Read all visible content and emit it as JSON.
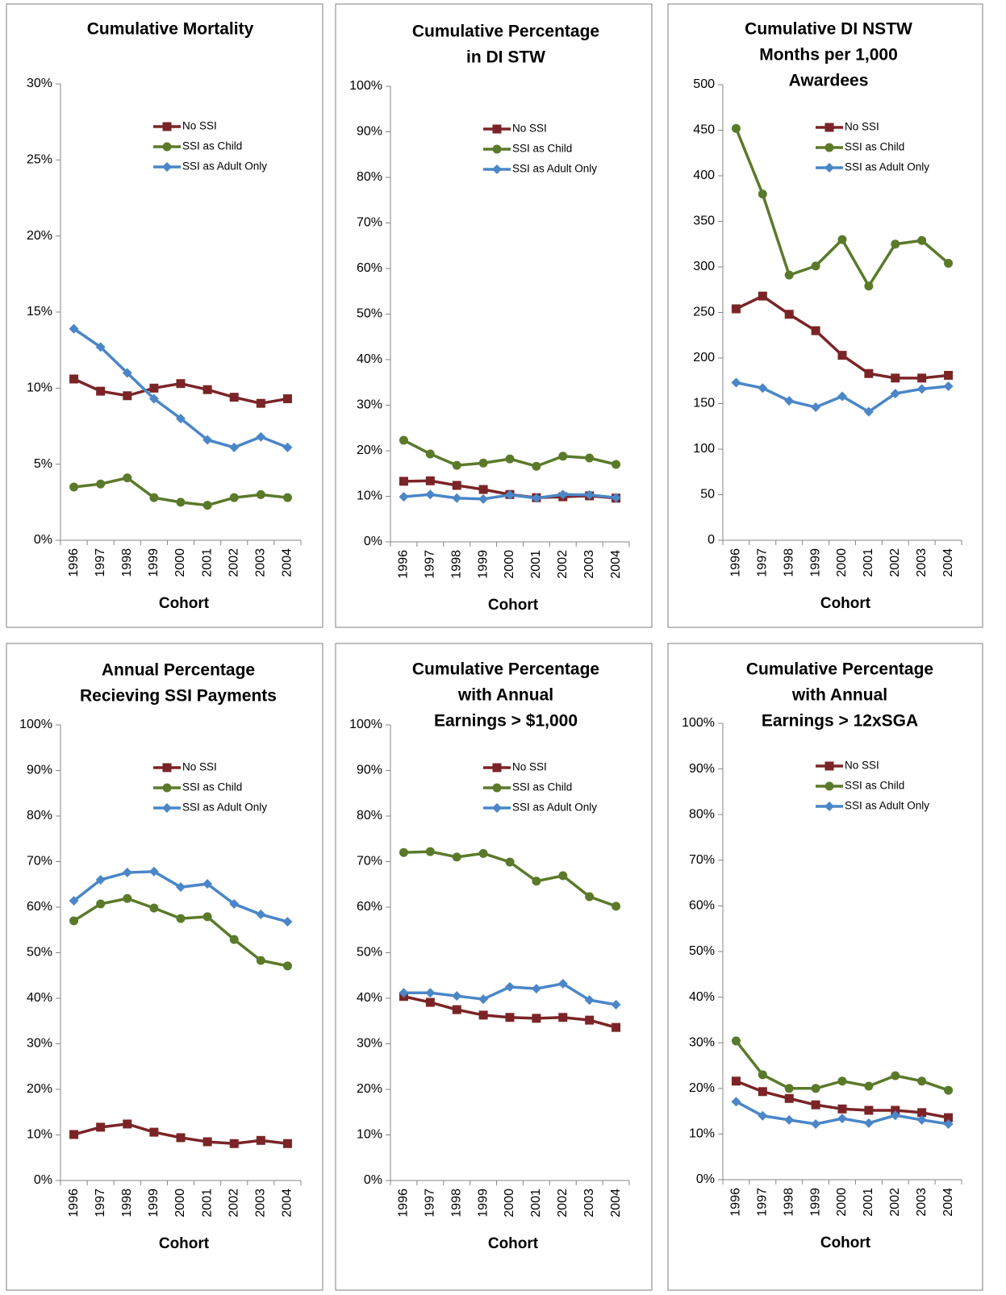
{
  "chart_data": [
    {
      "type": "line",
      "title": [
        "Cumulative Mortality"
      ],
      "x_label": "Cohort",
      "categories": [
        "1996",
        "1997",
        "1998",
        "1999",
        "2000",
        "2001",
        "2002",
        "2003",
        "2004"
      ],
      "series": [
        {
          "name": "No SSI",
          "color": "#7b2427",
          "marker": "square",
          "values": [
            10.6,
            9.8,
            9.5,
            10.0,
            10.3,
            9.9,
            9.4,
            9.0,
            9.3
          ]
        },
        {
          "name": "SSI as Child",
          "color": "#5a7a2a",
          "marker": "circle",
          "values": [
            3.5,
            3.7,
            4.1,
            2.8,
            2.5,
            2.3,
            2.8,
            3.0,
            2.8
          ]
        },
        {
          "name": "SSI as Adult Only",
          "color": "#4a86c8",
          "marker": "diamond",
          "values": [
            13.9,
            12.7,
            11.0,
            9.3,
            8.0,
            6.6,
            6.1,
            6.8,
            6.1
          ]
        }
      ],
      "ylim": [
        0,
        30
      ],
      "yticks": [
        {
          "value": 0,
          "label": "0%"
        },
        {
          "value": 5,
          "label": "5%"
        },
        {
          "value": 10,
          "label": "10%"
        },
        {
          "value": 15,
          "label": "15%"
        },
        {
          "value": 20,
          "label": "20%"
        },
        {
          "value": 25,
          "label": "25%"
        },
        {
          "value": 30,
          "label": "30%"
        }
      ],
      "legend": "top"
    },
    {
      "type": "line",
      "title": [
        "Cumulative Percentage",
        "in DI STW"
      ],
      "x_label": "Cohort",
      "categories": [
        "1996",
        "1997",
        "1998",
        "1999",
        "2000",
        "2001",
        "2002",
        "2003",
        "2004"
      ],
      "series": [
        {
          "name": "No SSI",
          "color": "#7b2427",
          "marker": "square",
          "values": [
            13.3,
            13.4,
            12.4,
            11.5,
            10.4,
            9.7,
            9.9,
            10.1,
            9.6
          ]
        },
        {
          "name": "SSI as Child",
          "color": "#5a7a2a",
          "marker": "circle",
          "values": [
            22.3,
            19.3,
            16.8,
            17.3,
            18.2,
            16.6,
            18.8,
            18.4,
            17.0
          ]
        },
        {
          "name": "SSI as Adult Only",
          "color": "#4a86c8",
          "marker": "diamond",
          "values": [
            9.9,
            10.4,
            9.6,
            9.4,
            10.3,
            9.6,
            10.4,
            10.3,
            9.7
          ]
        }
      ],
      "ylim": [
        0,
        100
      ],
      "yticks": [
        {
          "value": 0,
          "label": "0%"
        },
        {
          "value": 10,
          "label": "10%"
        },
        {
          "value": 20,
          "label": "20%"
        },
        {
          "value": 30,
          "label": "30%"
        },
        {
          "value": 40,
          "label": "40%"
        },
        {
          "value": 50,
          "label": "50%"
        },
        {
          "value": 60,
          "label": "60%"
        },
        {
          "value": 70,
          "label": "70%"
        },
        {
          "value": 80,
          "label": "80%"
        },
        {
          "value": 90,
          "label": "90%"
        },
        {
          "value": 100,
          "label": "100%"
        }
      ],
      "legend": "top"
    },
    {
      "type": "line",
      "title": [
        "Cumulative DI NSTW",
        "Months per 1,000",
        "Awardees"
      ],
      "x_label": "Cohort",
      "categories": [
        "1996",
        "1997",
        "1998",
        "1999",
        "2000",
        "2001",
        "2002",
        "2003",
        "2004"
      ],
      "series": [
        {
          "name": "No SSI",
          "color": "#7b2427",
          "marker": "square",
          "values": [
            254,
            268,
            248,
            230,
            203,
            183,
            178,
            178,
            181
          ]
        },
        {
          "name": "SSI as Child",
          "color": "#5a7a2a",
          "marker": "circle",
          "values": [
            452,
            380,
            291,
            301,
            330,
            279,
            325,
            329,
            304
          ]
        },
        {
          "name": "SSI as Adult Only",
          "color": "#4a86c8",
          "marker": "diamond",
          "values": [
            173,
            167,
            153,
            146,
            158,
            141,
            161,
            166,
            169
          ]
        }
      ],
      "ylim": [
        0,
        500
      ],
      "yticks": [
        0,
        50,
        100,
        150,
        200,
        250,
        300,
        350,
        400,
        450,
        500
      ],
      "legend": "top"
    },
    {
      "type": "line",
      "title": [
        "Annual Percentage",
        "Recieving SSI Payments"
      ],
      "x_label": "Cohort",
      "categories": [
        "1996",
        "1997",
        "1998",
        "1999",
        "2000",
        "2001",
        "2002",
        "2003",
        "2004"
      ],
      "series": [
        {
          "name": "No SSI",
          "color": "#7b2427",
          "marker": "square",
          "values": [
            10.1,
            11.7,
            12.4,
            10.6,
            9.4,
            8.5,
            8.1,
            8.8,
            8.1
          ]
        },
        {
          "name": "SSI as Child",
          "color": "#5a7a2a",
          "marker": "circle",
          "values": [
            57.0,
            60.7,
            61.9,
            59.8,
            57.5,
            57.9,
            52.9,
            48.3,
            47.1
          ]
        },
        {
          "name": "SSI as Adult Only",
          "color": "#4a86c8",
          "marker": "diamond",
          "values": [
            61.4,
            66.0,
            67.6,
            67.8,
            64.4,
            65.1,
            60.7,
            58.4,
            56.8
          ]
        }
      ],
      "ylim": [
        0,
        100
      ],
      "yticks": [
        {
          "value": 0,
          "label": "0%"
        },
        {
          "value": 10,
          "label": "10%"
        },
        {
          "value": 20,
          "label": "20%"
        },
        {
          "value": 30,
          "label": "30%"
        },
        {
          "value": 40,
          "label": "40%"
        },
        {
          "value": 50,
          "label": "50%"
        },
        {
          "value": 60,
          "label": "60%"
        },
        {
          "value": 70,
          "label": "70%"
        },
        {
          "value": 80,
          "label": "80%"
        },
        {
          "value": 90,
          "label": "90%"
        },
        {
          "value": 100,
          "label": "100%"
        }
      ],
      "legend": "top"
    },
    {
      "type": "line",
      "title": [
        "Cumulative Percentage",
        "with Annual",
        "Earnings > $1,000"
      ],
      "x_label": "Cohort",
      "categories": [
        "1996",
        "1997",
        "1998",
        "1999",
        "2000",
        "2001",
        "2002",
        "2003",
        "2004"
      ],
      "series": [
        {
          "name": "No SSI",
          "color": "#7b2427",
          "marker": "square",
          "values": [
            40.4,
            39.1,
            37.5,
            36.3,
            35.8,
            35.6,
            35.8,
            35.2,
            33.6
          ]
        },
        {
          "name": "SSI as Child",
          "color": "#5a7a2a",
          "marker": "circle",
          "values": [
            72.0,
            72.2,
            71.0,
            71.8,
            69.9,
            65.7,
            66.9,
            62.3,
            60.2
          ]
        },
        {
          "name": "SSI as Adult Only",
          "color": "#4a86c8",
          "marker": "diamond",
          "values": [
            41.2,
            41.2,
            40.5,
            39.8,
            42.5,
            42.1,
            43.2,
            39.6,
            38.6
          ]
        }
      ],
      "ylim": [
        0,
        100
      ],
      "yticks": [
        {
          "value": 0,
          "label": "0%"
        },
        {
          "value": 10,
          "label": "10%"
        },
        {
          "value": 20,
          "label": "20%"
        },
        {
          "value": 30,
          "label": "30%"
        },
        {
          "value": 40,
          "label": "40%"
        },
        {
          "value": 50,
          "label": "50%"
        },
        {
          "value": 60,
          "label": "60%"
        },
        {
          "value": 70,
          "label": "70%"
        },
        {
          "value": 80,
          "label": "80%"
        },
        {
          "value": 90,
          "label": "90%"
        },
        {
          "value": 100,
          "label": "100%"
        }
      ],
      "legend": "top"
    },
    {
      "type": "line",
      "title": [
        "Cumulative Percentage",
        "with Annual",
        "Earnings > 12xSGA"
      ],
      "x_label": "Cohort",
      "categories": [
        "1996",
        "1997",
        "1998",
        "1999",
        "2000",
        "2001",
        "2002",
        "2003",
        "2004"
      ],
      "series": [
        {
          "name": "No SSI",
          "color": "#7b2427",
          "marker": "square",
          "values": [
            21.6,
            19.3,
            17.8,
            16.4,
            15.5,
            15.2,
            15.2,
            14.7,
            13.6
          ]
        },
        {
          "name": "SSI as Child",
          "color": "#5a7a2a",
          "marker": "circle",
          "values": [
            30.4,
            23.0,
            20.0,
            20.0,
            21.6,
            20.5,
            22.8,
            21.6,
            19.6
          ]
        },
        {
          "name": "SSI as Adult Only",
          "color": "#4a86c8",
          "marker": "diamond",
          "values": [
            17.1,
            14.0,
            13.1,
            12.2,
            13.4,
            12.4,
            14.1,
            13.1,
            12.2
          ]
        }
      ],
      "ylim": [
        0,
        100
      ],
      "yticks": [
        {
          "value": 0,
          "label": "0%"
        },
        {
          "value": 10,
          "label": "10%"
        },
        {
          "value": 20,
          "label": "20%"
        },
        {
          "value": 30,
          "label": "30%"
        },
        {
          "value": 40,
          "label": "40%"
        },
        {
          "value": 50,
          "label": "50%"
        },
        {
          "value": 60,
          "label": "60%"
        },
        {
          "value": 70,
          "label": "70%"
        },
        {
          "value": 80,
          "label": "80%"
        },
        {
          "value": 90,
          "label": "90%"
        },
        {
          "value": 100,
          "label": "100%"
        }
      ],
      "legend": "top"
    }
  ]
}
